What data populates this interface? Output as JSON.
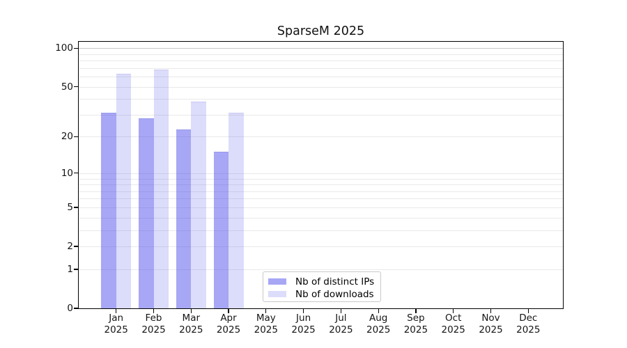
{
  "chart_data": {
    "type": "bar",
    "title": "SparseM 2025",
    "x_ticks": [
      {
        "month": "Jan",
        "year": "2025"
      },
      {
        "month": "Feb",
        "year": "2025"
      },
      {
        "month": "Mar",
        "year": "2025"
      },
      {
        "month": "Apr",
        "year": "2025"
      },
      {
        "month": "May",
        "year": "2025"
      },
      {
        "month": "Jun",
        "year": "2025"
      },
      {
        "month": "Jul",
        "year": "2025"
      },
      {
        "month": "Aug",
        "year": "2025"
      },
      {
        "month": "Sep",
        "year": "2025"
      },
      {
        "month": "Oct",
        "year": "2025"
      },
      {
        "month": "Nov",
        "year": "2025"
      },
      {
        "month": "Dec",
        "year": "2025"
      }
    ],
    "series": [
      {
        "name": "Nb of distinct IPs",
        "color": "rgba(60,60,235,0.45)",
        "solid_color": "#a9a9f6",
        "edge_color": "#9898ef",
        "values": [
          31,
          28,
          23,
          15,
          0,
          0,
          0,
          0,
          0,
          0,
          0,
          0
        ]
      },
      {
        "name": "Nb of downloads",
        "color": "rgba(60,60,235,0.18)",
        "solid_color": "#dcdcfb",
        "edge_color": "#c9c9f5",
        "values": [
          63,
          68,
          38,
          31,
          0,
          0,
          0,
          0,
          0,
          0,
          0,
          0
        ]
      }
    ],
    "y_ticks": [
      0,
      1,
      2,
      5,
      10,
      20,
      50,
      100
    ],
    "gridline_values": [
      1,
      2,
      3,
      4,
      5,
      6,
      7,
      8,
      9,
      10,
      20,
      30,
      40,
      50,
      60,
      70,
      80,
      90,
      100
    ],
    "scale": "log1p",
    "ylim": [
      0,
      114
    ],
    "grid": "on",
    "grid_color": "#e9e9e9",
    "grid_color_100": "#c9c9c9",
    "legend_position": "lower center",
    "axis_color": "#000000"
  }
}
